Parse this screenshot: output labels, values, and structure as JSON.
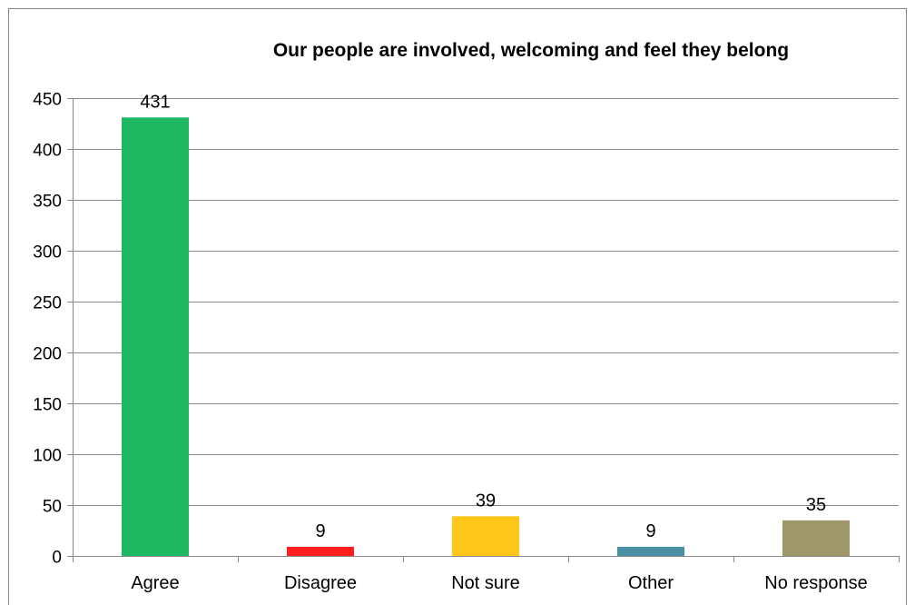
{
  "chart_data": {
    "type": "bar",
    "title": "Our people are involved, welcoming and feel they belong",
    "categories": [
      "Agree",
      "Disagree",
      "Not sure",
      "Other",
      "No response"
    ],
    "values": [
      431,
      9,
      39,
      9,
      35
    ],
    "data_labels": [
      "431",
      "9",
      "39",
      "9",
      "35"
    ],
    "colors": [
      "#1eb862",
      "#ff1f1f",
      "#ffc61a",
      "#4a8fa3",
      "#9e976a"
    ],
    "xlabel": "",
    "ylabel": "",
    "ylim": [
      0,
      450
    ],
    "yticks": [
      0,
      50,
      100,
      150,
      200,
      250,
      300,
      350,
      400,
      450
    ],
    "grid": true,
    "legend": "none"
  }
}
